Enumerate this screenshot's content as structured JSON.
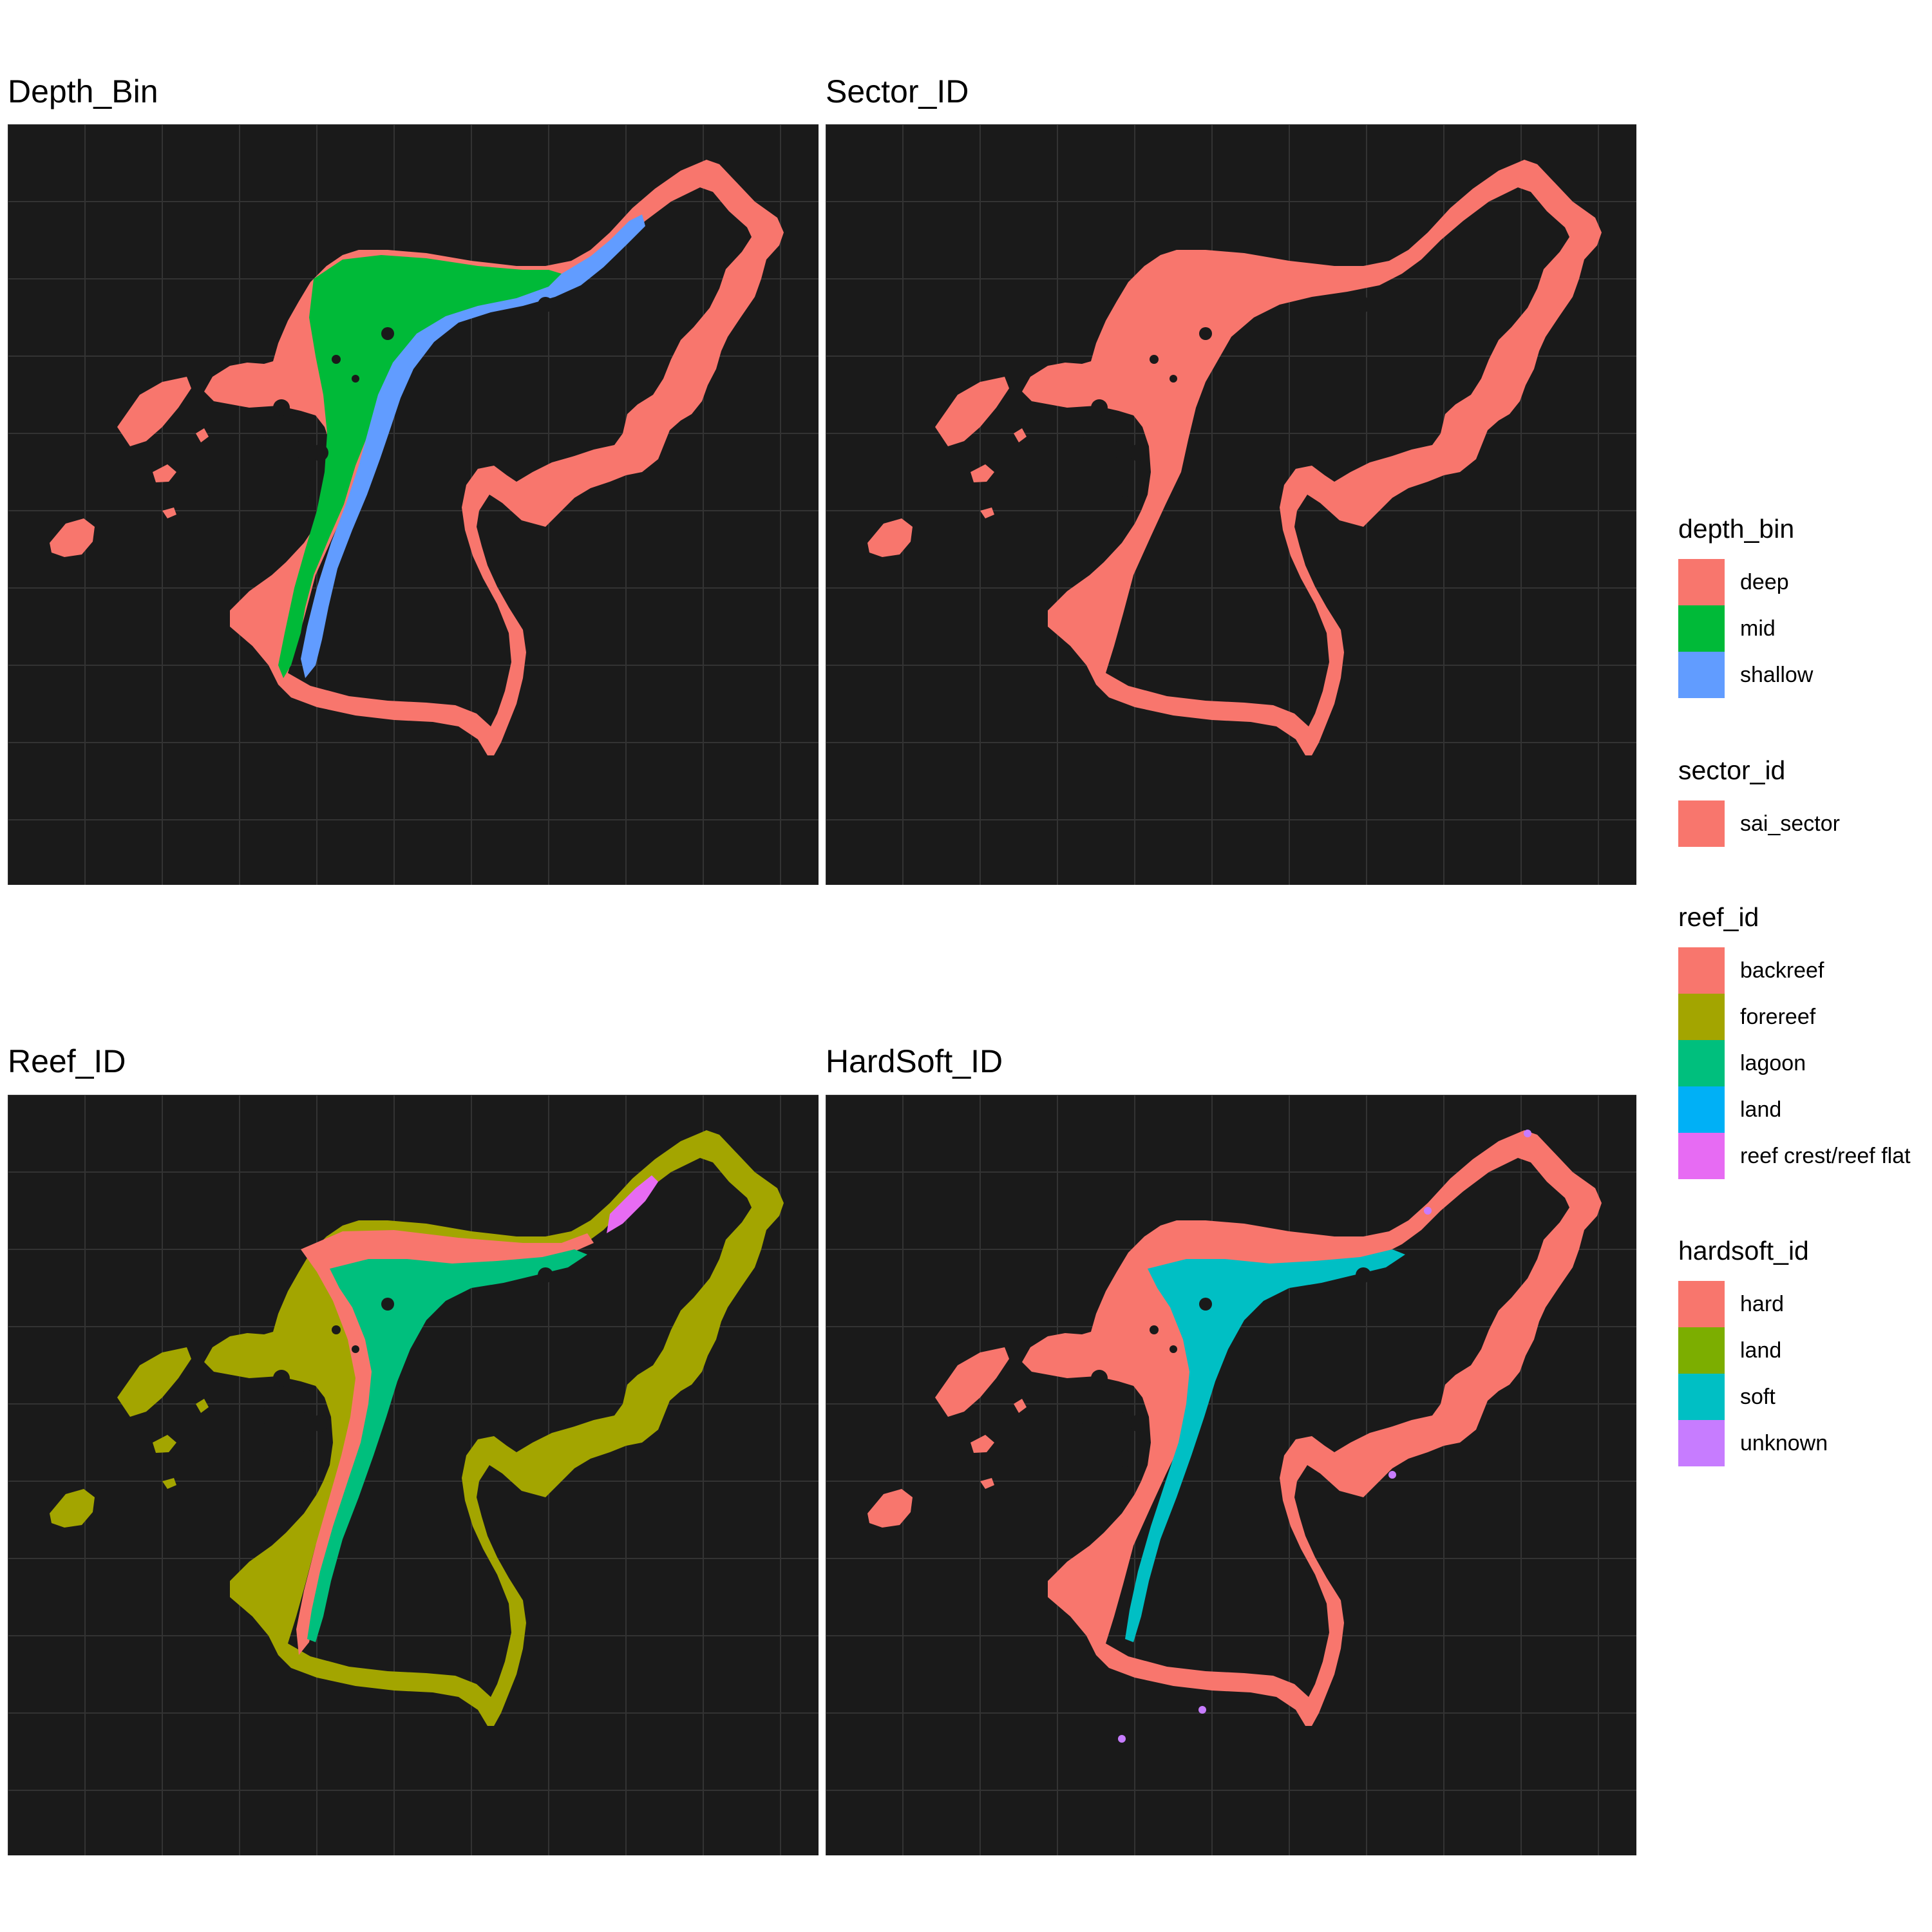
{
  "panels": [
    {
      "title": "Depth_Bin",
      "layers": [
        {
          "class": "deep",
          "role": "outline"
        },
        {
          "class": "mid",
          "role": "lagoon-mid"
        },
        {
          "class": "shallow",
          "role": "lagoon-shallow"
        }
      ]
    },
    {
      "title": "Sector_ID",
      "layers": [
        {
          "class": "sai_sector",
          "role": "full"
        }
      ]
    },
    {
      "title": "Reef_ID",
      "layers": [
        {
          "class": "forereef",
          "role": "outline"
        },
        {
          "class": "backreef",
          "role": "rim"
        },
        {
          "class": "lagoon",
          "role": "lagoon-full"
        },
        {
          "class": "reef crest/reef flat",
          "role": "crest"
        }
      ]
    },
    {
      "title": "HardSoft_ID",
      "layers": [
        {
          "class": "hard",
          "role": "outline"
        },
        {
          "class": "soft",
          "role": "soft"
        },
        {
          "class": "unknown",
          "role": "specks"
        }
      ]
    }
  ],
  "legends": [
    {
      "title": "depth_bin",
      "items": [
        {
          "label": "deep",
          "color": "#F8766D"
        },
        {
          "label": "mid",
          "color": "#00BA38"
        },
        {
          "label": "shallow",
          "color": "#619CFF"
        }
      ]
    },
    {
      "title": "sector_id",
      "items": [
        {
          "label": "sai_sector",
          "color": "#F8766D"
        }
      ]
    },
    {
      "title": "reef_id",
      "items": [
        {
          "label": "backreef",
          "color": "#F8766D"
        },
        {
          "label": "forereef",
          "color": "#A3A500"
        },
        {
          "label": "lagoon",
          "color": "#00BF7D"
        },
        {
          "label": "land",
          "color": "#00B0F6"
        },
        {
          "label": "reef crest/reef flat",
          "color": "#E76BF3"
        }
      ]
    },
    {
      "title": "hardsoft_id",
      "items": [
        {
          "label": "hard",
          "color": "#F8766D"
        },
        {
          "label": "land",
          "color": "#7CAE00"
        },
        {
          "label": "soft",
          "color": "#00BFC4"
        },
        {
          "label": "unknown",
          "color": "#C77CFF"
        }
      ]
    }
  ],
  "map_background": "#1A1A1A",
  "gridline_color": "#333333"
}
